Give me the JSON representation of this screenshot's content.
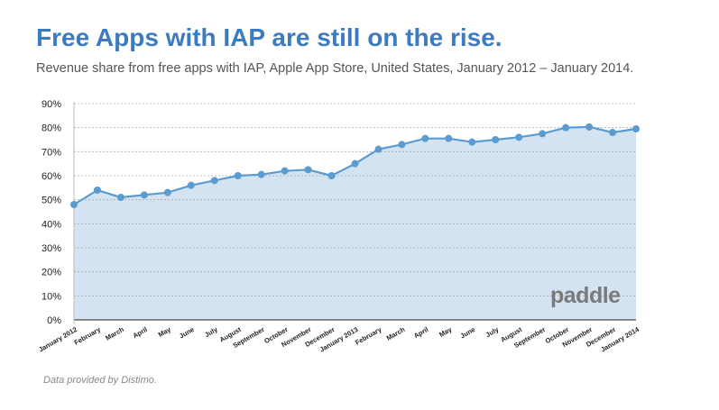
{
  "header": {
    "title": "Free Apps with IAP are still on the rise.",
    "subtitle": "Revenue share from free apps with IAP, Apple App Store, United States, January 2012 – January 2014."
  },
  "footer": {
    "source_note": "Data provided by Distimo.",
    "watermark": "paddle"
  },
  "colors": {
    "title": "#3d7bbf",
    "line": "#5b9bd0",
    "area_fill": "#d3e3f1",
    "grid": "#aaaaaa"
  },
  "chart_data": {
    "type": "area",
    "categories": [
      "January 2012",
      "February",
      "March",
      "April",
      "May",
      "June",
      "July",
      "August",
      "September",
      "October",
      "November",
      "December",
      "January 2013",
      "February",
      "March",
      "April",
      "May",
      "June",
      "July",
      "August",
      "September",
      "October",
      "November",
      "December",
      "January 2014"
    ],
    "series": [
      {
        "values": [
          48,
          54,
          51,
          52,
          53,
          56,
          58,
          60,
          60.5,
          62,
          62.5,
          60,
          65,
          71,
          73,
          75.5,
          75.5,
          74,
          75,
          76,
          77.5,
          80,
          80.3,
          78,
          79.5
        ]
      }
    ],
    "ylim": [
      0,
      90
    ],
    "yticks": [
      0,
      10,
      20,
      30,
      40,
      50,
      60,
      70,
      80,
      90
    ],
    "ytick_format": "percent",
    "grid": true,
    "xlabel": "",
    "ylabel": ""
  }
}
